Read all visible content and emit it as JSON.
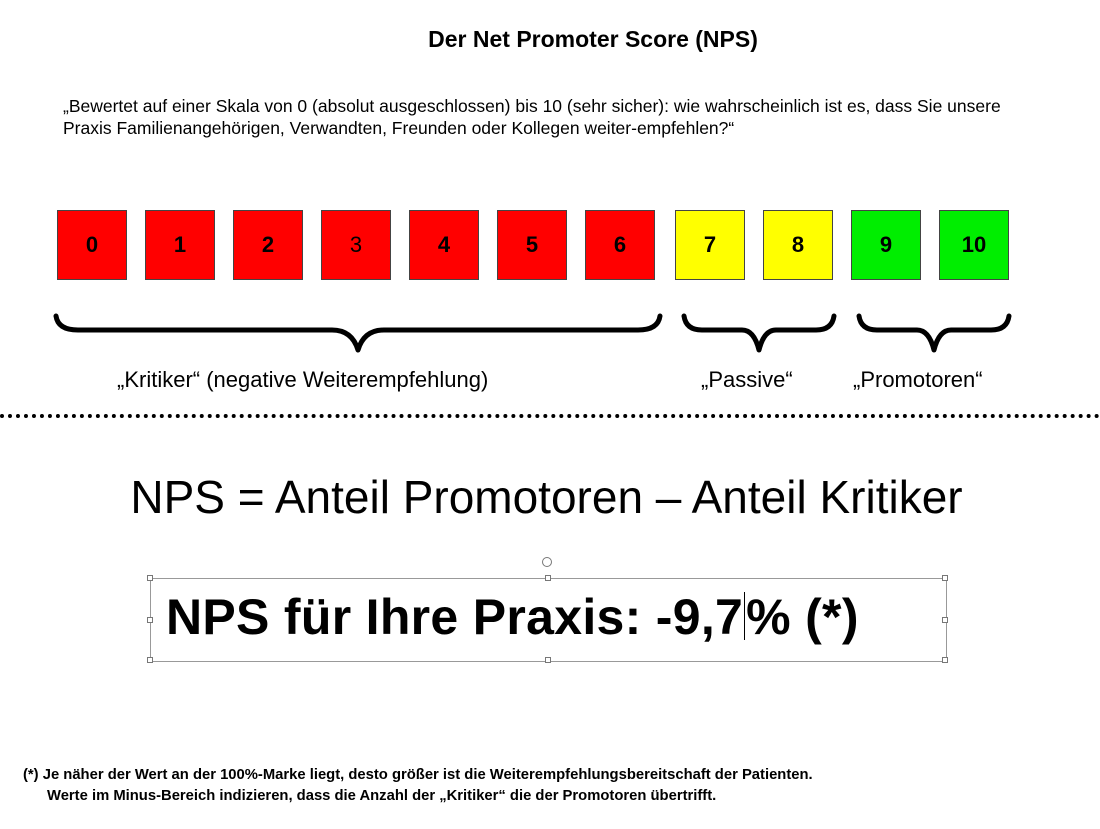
{
  "title": "Der Net Promoter Score (NPS)",
  "question": "„Bewertet auf einer Skala von 0 (absolut ausgeschlossen) bis 10 (sehr sicher): wie wahrscheinlich ist es, dass Sie unsere Praxis Familienangehörigen, Verwandten, Freunden oder Kollegen weiter-empfehlen?“",
  "scale": [
    {
      "label": "0",
      "color": "#ff0000"
    },
    {
      "label": "1",
      "color": "#ff0000"
    },
    {
      "label": "2",
      "color": "#ff0000"
    },
    {
      "label": "3",
      "color": "#ff0000"
    },
    {
      "label": "4",
      "color": "#ff0000"
    },
    {
      "label": "5",
      "color": "#ff0000"
    },
    {
      "label": "6",
      "color": "#ff0000"
    },
    {
      "label": "7",
      "color": "#ffff00"
    },
    {
      "label": "8",
      "color": "#ffff00"
    },
    {
      "label": "9",
      "color": "#00ee00"
    },
    {
      "label": "10",
      "color": "#00ee00"
    }
  ],
  "groups": {
    "kritiker": "„Kritiker“ (negative Weiterempfehlung)",
    "passive": "„Passive“",
    "promotoren": "„Promotoren“"
  },
  "formula": "NPS = Anteil Promotoren – Anteil Kritiker",
  "result": {
    "before_cursor": "NPS für Ihre Praxis: -9,7",
    "after_cursor": "% (*)"
  },
  "footnote": {
    "line1": "(*) Je näher der Wert an der 100%-Marke liegt, desto größer ist die Weiterempfehlungsbereitschaft der Patienten.",
    "line2": "Werte im Minus-Bereich indizieren, dass die Anzahl der „Kritiker“ die der Promotoren übertrifft."
  }
}
